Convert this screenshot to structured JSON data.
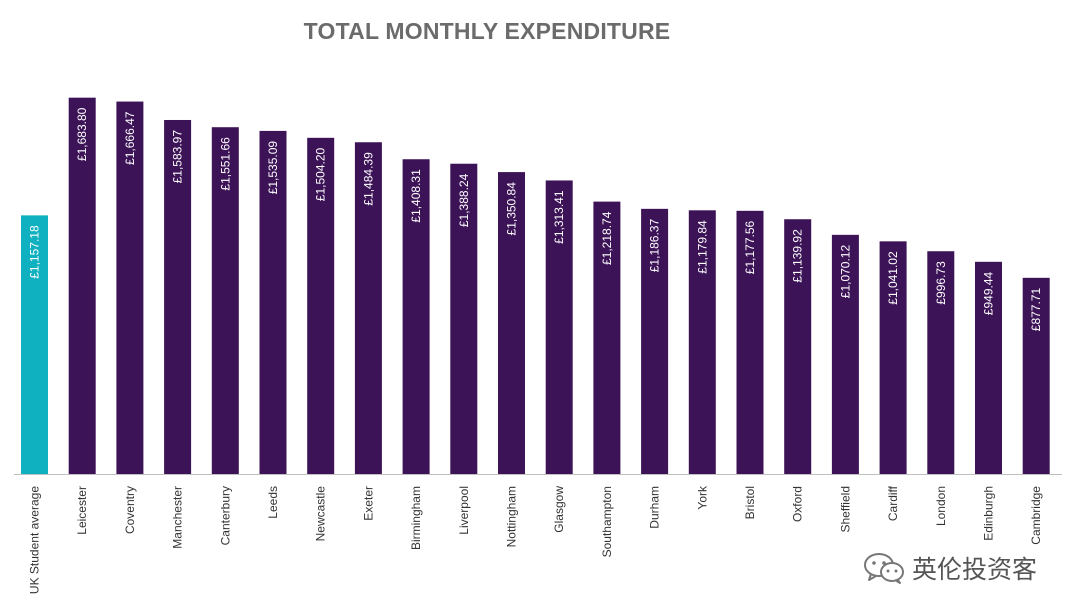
{
  "chart_data": {
    "type": "bar",
    "title": "TOTAL MONTHLY EXPENDITURE",
    "xlabel": "",
    "ylabel": "",
    "ylim": [
      0,
      1700
    ],
    "categories": [
      "UK Student average",
      "Leicester",
      "Coventry",
      "Manchester",
      "Canterbury",
      "Leeds",
      "Newcastle",
      "Exeter",
      "Birmingham",
      "Liverpool",
      "Nottingham",
      "Glasgow",
      "Southampton",
      "Durham",
      "York",
      "Bristol",
      "Oxford",
      "Sheffield",
      "Cardiff",
      "London",
      "Edinburgh",
      "Cambridge"
    ],
    "values": [
      1157.18,
      1683.8,
      1666.47,
      1583.97,
      1551.66,
      1535.09,
      1504.2,
      1484.39,
      1408.31,
      1388.24,
      1350.84,
      1313.41,
      1218.74,
      1186.37,
      1179.84,
      1177.56,
      1139.92,
      1070.12,
      1041.02,
      996.73,
      949.44,
      877.71
    ],
    "data_labels": [
      "£1,157.18",
      "£1,683.80",
      "£1,666.47",
      "£1,583.97",
      "£1,551.66",
      "£1,535.09",
      "£1,504.20",
      "£1,484.39",
      "£1,408.31",
      "£1,388.24",
      "£1,350.84",
      "£1,313.41",
      "£1,218.74",
      "£1,186.37",
      "£1,179.84",
      "£1,177.56",
      "£1,139.92",
      "£1,070.12",
      "£1,041.02",
      "£996.73",
      "£949.44",
      "£877.71"
    ],
    "highlight_color": "#0fb0bf",
    "bar_color": "#3d1358",
    "label_color": "#ffffff"
  },
  "watermark": {
    "icon": "wechat-icon",
    "text": "英伦投资客"
  }
}
